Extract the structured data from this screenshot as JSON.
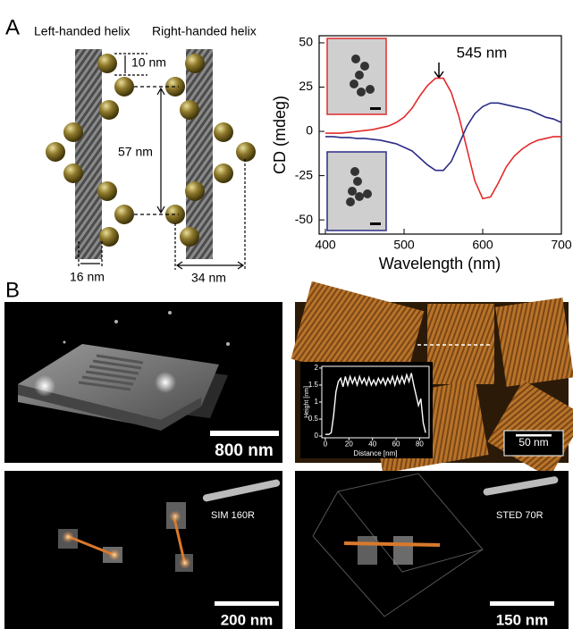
{
  "panel_a": {
    "label": "A",
    "left_helix": "Left-handed helix",
    "right_helix": "Right-handed helix",
    "dimensions": [
      "10 nm",
      "57 nm",
      "16 nm",
      "34 nm"
    ]
  },
  "chart_data": [
    {
      "type": "line",
      "annotation": "545 nm",
      "xlabel": "Wavelength (nm)",
      "ylabel": "CD (mdeg)",
      "x": [
        400,
        410,
        420,
        430,
        440,
        450,
        460,
        470,
        480,
        490,
        500,
        510,
        520,
        530,
        540,
        550,
        560,
        570,
        580,
        590,
        600,
        610,
        620,
        630,
        640,
        650,
        660,
        670,
        680,
        690,
        700
      ],
      "series": [
        {
          "color": "#e32b2b",
          "values": [
            -1,
            -1,
            -1,
            -0.5,
            0,
            0.5,
            1,
            2,
            3,
            5,
            8,
            13,
            20,
            26,
            30,
            30,
            22,
            8,
            -10,
            -28,
            -38,
            -37,
            -29,
            -20,
            -14,
            -10,
            -7,
            -5,
            -4,
            -3,
            -3
          ]
        },
        {
          "color": "#2b2d86",
          "values": [
            -3,
            -3,
            -3.5,
            -3.5,
            -4,
            -4,
            -4.5,
            -5,
            -6,
            -7,
            -9,
            -11,
            -15,
            -19,
            -22,
            -22,
            -17,
            -7,
            3,
            10,
            14,
            16,
            16,
            15,
            14,
            13,
            12,
            10,
            8,
            7,
            5
          ]
        }
      ],
      "xlim": [
        392,
        700
      ],
      "xticks": [
        400,
        500,
        600,
        700
      ],
      "ylim": [
        -58,
        54
      ],
      "yticks": [
        -50,
        -25,
        0,
        25,
        50
      ]
    },
    {
      "type": "line",
      "xlabel": "Distance [nm]",
      "ylabel": "Height [nm]",
      "x": [
        0,
        3,
        5,
        7,
        9,
        11,
        13,
        15,
        17,
        19,
        21,
        23,
        25,
        27,
        29,
        31,
        33,
        35,
        37,
        39,
        41,
        43,
        45,
        47,
        49,
        51,
        53,
        55,
        57,
        59,
        61,
        63,
        65,
        67,
        69,
        71,
        73,
        75,
        77,
        79,
        81,
        83,
        85
      ],
      "series": [
        {
          "color": "#ffffff",
          "values": [
            0.05,
            0.05,
            0.1,
            0.6,
            1.3,
            1.6,
            1.7,
            1.45,
            1.75,
            1.5,
            1.75,
            1.55,
            1.72,
            1.5,
            1.75,
            1.55,
            1.7,
            1.5,
            1.72,
            1.5,
            1.65,
            1.5,
            1.7,
            1.55,
            1.7,
            1.5,
            1.7,
            1.55,
            1.75,
            1.5,
            1.75,
            1.55,
            1.75,
            1.55,
            1.8,
            1.6,
            1.85,
            1.5,
            1.2,
            0.9,
            1.1,
            0.4,
            0.1
          ]
        }
      ],
      "xlim": [
        -3,
        88
      ],
      "xticks": [
        0,
        20,
        40,
        60,
        80
      ],
      "ylim": [
        -0.05,
        2.05
      ],
      "yticks": [
        0,
        0.5,
        1,
        1.5,
        2
      ]
    }
  ],
  "panel_b": {
    "label": "B",
    "scale_bars": [
      "800 nm",
      "50 nm",
      "200 nm",
      "150 nm"
    ],
    "labels": [
      "SIM 160R",
      "STED 70R"
    ]
  }
}
